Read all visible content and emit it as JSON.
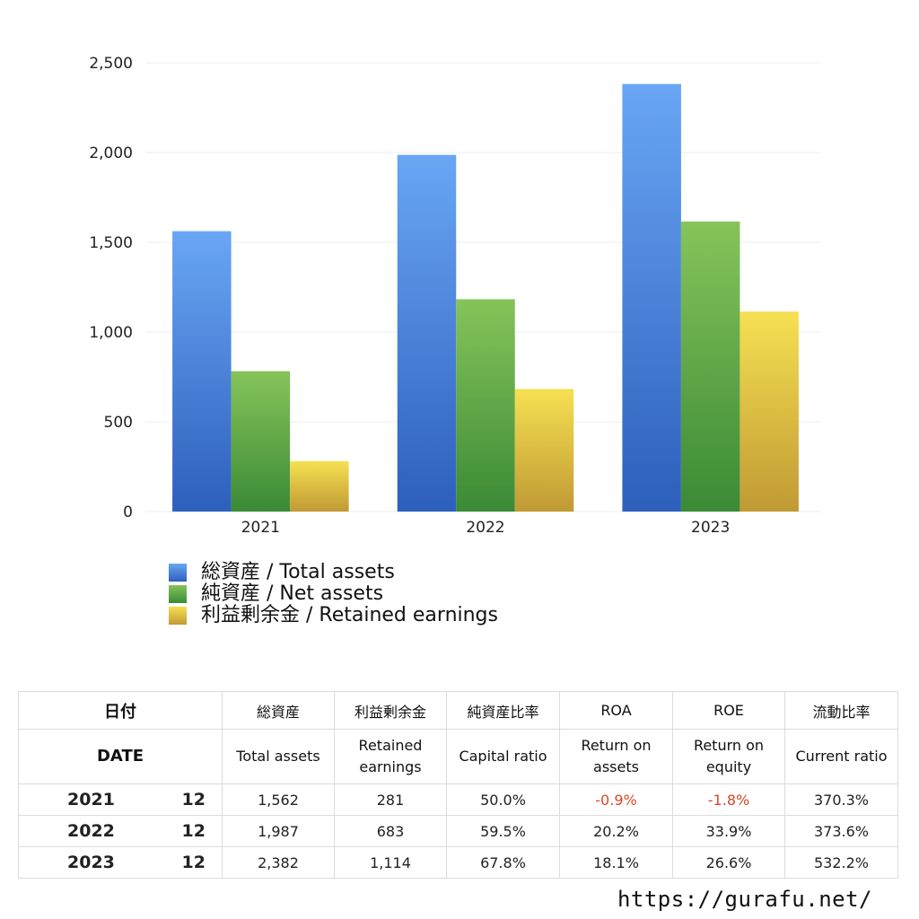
{
  "chart_data": {
    "type": "bar",
    "categories": [
      "2021",
      "2022",
      "2023"
    ],
    "series": [
      {
        "name": "総資産 / Total assets",
        "values": [
          1562,
          1987,
          2382
        ],
        "color": "#3f7fe0"
      },
      {
        "name": "純資産 / Net assets",
        "values": [
          782,
          1183,
          1616
        ],
        "color": "#5aa83f"
      },
      {
        "name": "利益剰余金 / Retained earnings",
        "values": [
          281,
          683,
          1114
        ],
        "color": "#e3c33a"
      }
    ],
    "yticks": [
      "0",
      "500",
      "1,000",
      "1,500",
      "2,000",
      "2,500"
    ],
    "ylim": [
      0,
      2500
    ],
    "grid": true,
    "legend_position": "bottom-left"
  },
  "table": {
    "headers_jp": [
      "日付",
      "総資産",
      "利益剰余金",
      "純資産比率",
      "ROA",
      "ROE",
      "流動比率"
    ],
    "headers_en": [
      "DATE",
      "Total assets",
      "Retained earnings",
      "Capital ratio",
      "Return on assets",
      "Return on equity",
      "Current ratio"
    ],
    "rows": [
      {
        "year": "2021",
        "month": "12",
        "total_assets": "1,562",
        "retained": "281",
        "capital_ratio": "50.0%",
        "roa": "-0.9%",
        "roe": "-1.8%",
        "current_ratio": "370.3%"
      },
      {
        "year": "2022",
        "month": "12",
        "total_assets": "1,987",
        "retained": "683",
        "capital_ratio": "59.5%",
        "roa": "20.2%",
        "roe": "33.9%",
        "current_ratio": "373.6%"
      },
      {
        "year": "2023",
        "month": "12",
        "total_assets": "2,382",
        "retained": "1,114",
        "capital_ratio": "67.8%",
        "roa": "18.1%",
        "roe": "26.6%",
        "current_ratio": "532.2%"
      }
    ]
  },
  "footer": {
    "url": "https://gurafu.net/"
  }
}
